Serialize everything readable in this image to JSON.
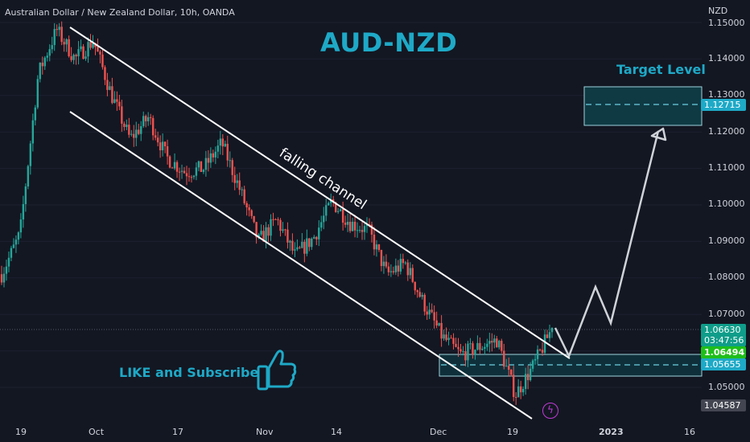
{
  "header": {
    "symbol_title": "Australian Dollar / New Zealand Dollar, 10h, OANDA",
    "headline": "AUD-NZD"
  },
  "annotations": {
    "channel_label": "falling channel",
    "target_label": "Target Level",
    "like_label": "LIKE and Subscribe"
  },
  "price_axis": {
    "currency": "NZD",
    "ticks": [
      "1.15000",
      "1.14000",
      "1.13000",
      "1.12000",
      "1.11000",
      "1.10000",
      "1.09000",
      "1.08000",
      "1.07000",
      "1.05000"
    ]
  },
  "time_axis": {
    "ticks": [
      "19",
      "Oct",
      "17",
      "Nov",
      "14",
      "Dec",
      "19",
      "2023",
      "16"
    ]
  },
  "price_tags": {
    "last_price": "1.06630",
    "countdown": "03:47:56",
    "green_level": "1.06494",
    "support_level": "1.05655",
    "target_level": "1.12715",
    "low_level": "1.04587"
  },
  "icons": [
    "thumbs-up-icon",
    "lightning-icon"
  ],
  "colors": {
    "background": "#131722",
    "up_candle": "#26a69a",
    "down_candle": "#ef5350",
    "accent": "#1ea9c7",
    "zone_fill": "#0f3a44"
  },
  "chart_data": {
    "type": "candlestick",
    "symbol": "Australian Dollar / New Zealand Dollar",
    "interval": "10h",
    "source": "OANDA",
    "ylim": [
      1.04,
      1.15
    ],
    "x_ticks": [
      "19",
      "Oct",
      "17",
      "Nov",
      "14",
      "Dec",
      "19",
      "2023",
      "16"
    ],
    "close_path": [
      1.081,
      1.092,
      1.136,
      1.148,
      1.14,
      1.145,
      1.13,
      1.118,
      1.124,
      1.113,
      1.109,
      1.11,
      1.117,
      1.104,
      1.09,
      1.096,
      1.086,
      1.091,
      1.101,
      1.095,
      1.093,
      1.081,
      1.084,
      1.073,
      1.064,
      1.059,
      1.061,
      1.063,
      1.048,
      1.056,
      1.0663
    ],
    "support_zone": [
      1.0535,
      1.0595
    ],
    "target_zone": [
      1.122,
      1.132
    ],
    "levels": {
      "last": 1.0663,
      "green": 1.06494,
      "support": 1.05655,
      "target": 1.12715,
      "low": 1.04587
    },
    "projection": [
      1.0663,
      1.0565,
      1.0775,
      1.0685,
      1.121
    ]
  }
}
